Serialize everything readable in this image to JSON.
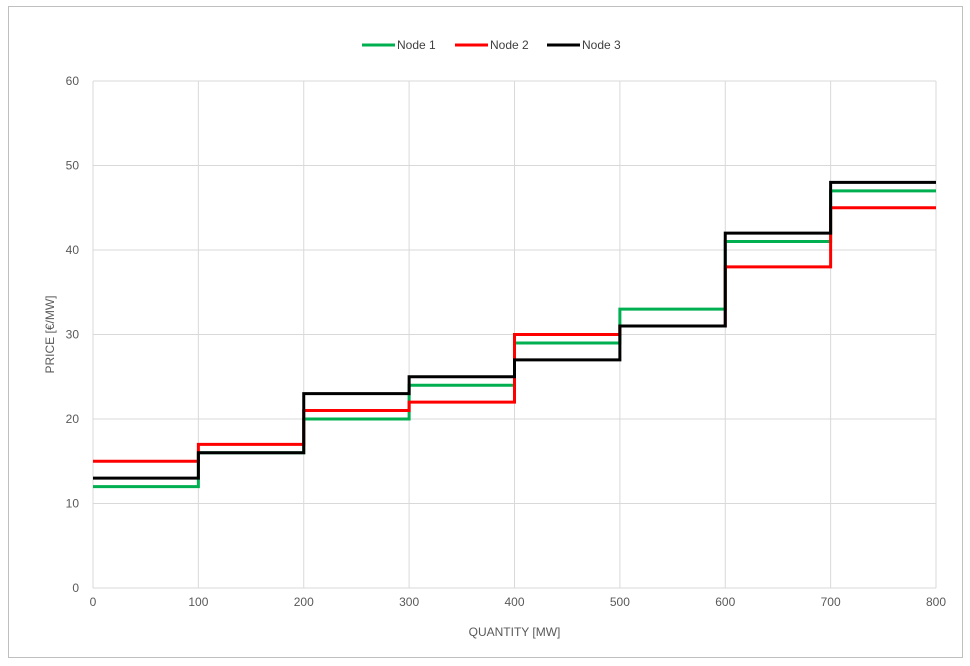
{
  "chart_data": {
    "type": "line",
    "step": true,
    "title": "",
    "xlabel": "QUANTITY [MW]",
    "ylabel": "PRICE [€/MW]",
    "xlim": [
      0,
      800
    ],
    "ylim": [
      0,
      60
    ],
    "xticks": [
      0,
      100,
      200,
      300,
      400,
      500,
      600,
      700,
      800
    ],
    "yticks": [
      0,
      10,
      20,
      30,
      40,
      50,
      60
    ],
    "grid": true,
    "legend_position": "top-center",
    "x": [
      0,
      100,
      200,
      300,
      400,
      500,
      600,
      700,
      800
    ],
    "series": [
      {
        "name": "Node 1",
        "color": "#00b050",
        "values": [
          12,
          16,
          20,
          24,
          29,
          33,
          41,
          47,
          47
        ]
      },
      {
        "name": "Node 2",
        "color": "#ff0000",
        "values": [
          15,
          17,
          21,
          22,
          30,
          31,
          38,
          45,
          45
        ]
      },
      {
        "name": "Node 3",
        "color": "#000000",
        "values": [
          13,
          16,
          23,
          25,
          27,
          31,
          42,
          48,
          48
        ]
      }
    ]
  }
}
